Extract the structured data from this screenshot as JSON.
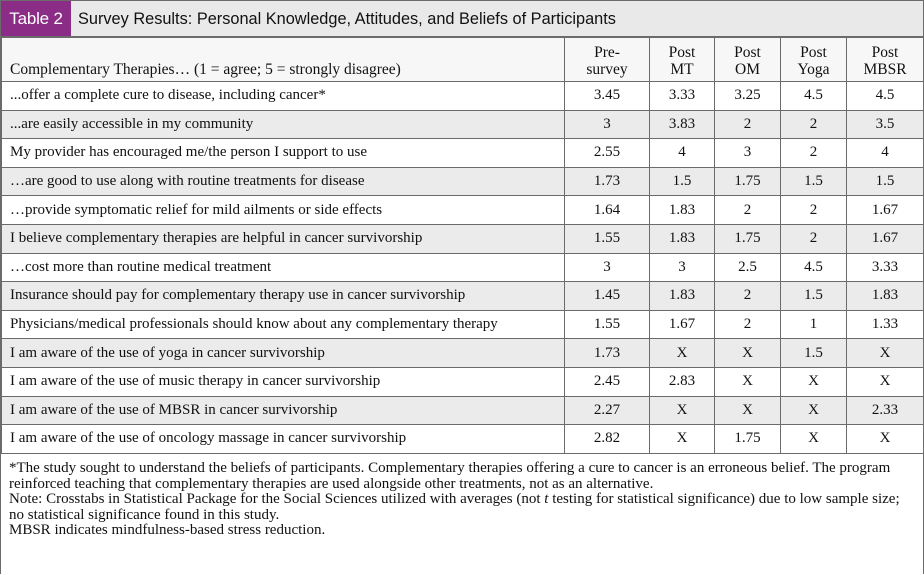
{
  "header": {
    "label": "Table 2",
    "title": "Survey Results: Personal Knowledge, Attitudes, and Beliefs of Participants"
  },
  "columns": {
    "question": "Complementary Therapies… (1 = agree; 5 = strongly disagree)",
    "pre": [
      "Pre-",
      "survey"
    ],
    "mt": [
      "Post",
      "MT"
    ],
    "om": [
      "Post",
      "OM"
    ],
    "yoga": [
      "Post",
      "Yoga"
    ],
    "mbsr": [
      "Post",
      "MBSR"
    ]
  },
  "rows": [
    {
      "q": "...offer a complete cure to disease, including cancer*",
      "pre": "3.45",
      "mt": "3.33",
      "om": "3.25",
      "yoga": "4.5",
      "mbsr": "4.5"
    },
    {
      "q": "...are easily accessible in my community",
      "pre": "3",
      "mt": "3.83",
      "om": "2",
      "yoga": "2",
      "mbsr": "3.5"
    },
    {
      "q": "My provider has encouraged me/the person I support to use",
      "pre": "2.55",
      "mt": "4",
      "om": "3",
      "yoga": "2",
      "mbsr": "4"
    },
    {
      "q": "…are good to use along with routine treatments for disease",
      "pre": "1.73",
      "mt": "1.5",
      "om": "1.75",
      "yoga": "1.5",
      "mbsr": "1.5"
    },
    {
      "q": "…provide symptomatic relief for mild ailments or side effects",
      "pre": "1.64",
      "mt": "1.83",
      "om": "2",
      "yoga": "2",
      "mbsr": "1.67"
    },
    {
      "q": "I believe complementary therapies are helpful in cancer survivorship",
      "pre": "1.55",
      "mt": "1.83",
      "om": "1.75",
      "yoga": "2",
      "mbsr": "1.67"
    },
    {
      "q": "…cost more than routine medical treatment",
      "pre": "3",
      "mt": "3",
      "om": "2.5",
      "yoga": "4.5",
      "mbsr": "3.33"
    },
    {
      "q": "Insurance should pay for complementary therapy use in cancer survivorship",
      "pre": "1.45",
      "mt": "1.83",
      "om": "2",
      "yoga": "1.5",
      "mbsr": "1.83"
    },
    {
      "q": "Physicians/medical professionals should know about any complementary therapy",
      "pre": "1.55",
      "mt": "1.67",
      "om": "2",
      "yoga": "1",
      "mbsr": "1.33"
    },
    {
      "q": "I am aware of the use of yoga in cancer survivorship",
      "pre": "1.73",
      "mt": "X",
      "om": "X",
      "yoga": "1.5",
      "mbsr": "X"
    },
    {
      "q": "I am aware of the use of music therapy in cancer survivorship",
      "pre": "2.45",
      "mt": "2.83",
      "om": "X",
      "yoga": "X",
      "mbsr": "X"
    },
    {
      "q": "I am aware of the use of MBSR in cancer survivorship",
      "pre": "2.27",
      "mt": "X",
      "om": "X",
      "yoga": "X",
      "mbsr": "2.33"
    },
    {
      "q": "I am aware of the use of oncology massage in cancer survivorship",
      "pre": "2.82",
      "mt": "X",
      "om": "1.75",
      "yoga": "X",
      "mbsr": "X"
    }
  ],
  "notes": {
    "footnote": "*The study sought to understand the beliefs of participants. Complementary therapies offering a cure to cancer is an erroneous belief. The program reinforced teaching that complementary therapies are used alongside other treatments, not as an alternative.",
    "note_before": "Note: Crosstabs in Statistical Package for the Social Sciences utilized with averages (not ",
    "note_italic": "t",
    "note_after": " testing for statistical significance) due to low sample size; no statistical significance found in this study.",
    "abbrev": "MBSR indicates mindfulness-based stress reduction."
  }
}
